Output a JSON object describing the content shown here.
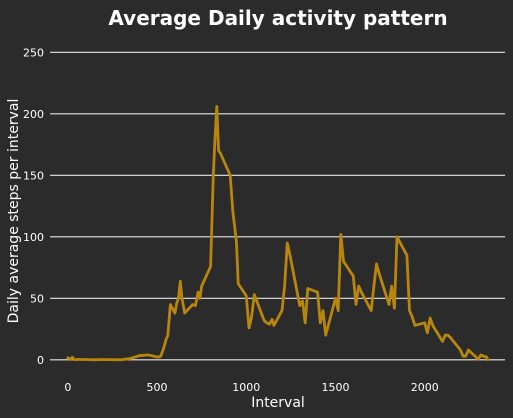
{
  "chart_data": {
    "type": "line",
    "title": "Average Daily activity pattern",
    "xlabel": "Interval",
    "ylabel": "Daily average steps per interval",
    "xlim": [
      -100,
      2450
    ],
    "ylim": [
      -5,
      260
    ],
    "x_ticks": [
      0,
      500,
      1000,
      1500,
      2000
    ],
    "y_ticks": [
      0,
      50,
      100,
      150,
      200,
      250
    ],
    "x_tick_labels": [
      "0",
      "500",
      "1000",
      "1500",
      "2000"
    ],
    "y_tick_labels": [
      "0",
      "50",
      "100",
      "150",
      "200",
      "250"
    ],
    "grid": "horizontal",
    "colors": {
      "background": "#2b2b2b",
      "line": "#b8860b",
      "grid": "#e6e6e6",
      "text": "#ffffff"
    },
    "series": [
      {
        "x": [
          0,
          15,
          25,
          40,
          55,
          100,
          150,
          200,
          235,
          300,
          350,
          400,
          450,
          505,
          520,
          535,
          550,
          560,
          575,
          600,
          610,
          620,
          630,
          640,
          655,
          700,
          715,
          730,
          740,
          750,
          800,
          815,
          825,
          835,
          845,
          855,
          910,
          925,
          935,
          945,
          955,
          1000,
          1015,
          1030,
          1045,
          1100,
          1115,
          1130,
          1145,
          1155,
          1200,
          1215,
          1230,
          1245,
          1300,
          1315,
          1330,
          1345,
          1400,
          1415,
          1430,
          1445,
          1500,
          1515,
          1530,
          1545,
          1600,
          1615,
          1630,
          1645,
          1700,
          1715,
          1730,
          1745,
          1800,
          1815,
          1830,
          1845,
          1900,
          1915,
          1930,
          1945,
          2000,
          2015,
          2030,
          2045,
          2100,
          2115,
          2130,
          2145,
          2200,
          2215,
          2230,
          2245,
          2300,
          2315,
          2330,
          2345,
          2355
        ],
        "y": [
          1.7,
          0.3,
          2.1,
          0,
          0.4,
          0.3,
          0,
          0.3,
          0.2,
          0,
          1.1,
          3.4,
          4,
          2.2,
          2.8,
          8.5,
          16.3,
          20,
          45,
          38,
          46,
          50,
          64,
          50,
          38,
          45,
          44,
          55,
          50,
          60,
          76,
          150,
          180,
          206,
          170,
          168,
          150,
          120,
          108,
          95,
          62,
          52,
          26,
          35,
          53,
          32,
          30,
          29,
          33,
          28,
          40,
          60,
          95,
          85,
          44,
          48,
          30,
          58,
          55,
          30,
          40,
          20,
          50,
          40,
          102,
          80,
          68,
          45,
          60,
          55,
          40,
          60,
          78,
          70,
          45,
          60,
          42,
          100,
          85,
          40,
          35,
          28,
          30,
          22,
          34,
          28,
          15,
          20,
          20,
          18,
          8,
          3,
          3,
          8,
          0.6,
          4,
          3,
          2.6,
          0
        ]
      }
    ]
  }
}
